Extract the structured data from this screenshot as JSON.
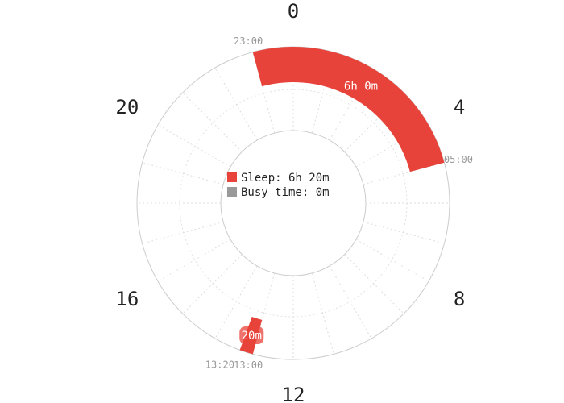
{
  "chart_data": {
    "type": "radial-bar",
    "hour_labels": [
      "0",
      "4",
      "8",
      "12",
      "16",
      "20"
    ],
    "segments": [
      {
        "start": "23:00",
        "end": "05:00",
        "duration_label": "6h 0m",
        "color": "#e8433a"
      },
      {
        "start": "13:00",
        "end": "13:20",
        "duration_label": "20m",
        "color": "#e8433a"
      }
    ],
    "legend": [
      {
        "label": "Sleep: 6h 20m",
        "color": "#e8433a"
      },
      {
        "label": "Busy time: 0m",
        "color": "#999999"
      }
    ],
    "grid": true
  }
}
